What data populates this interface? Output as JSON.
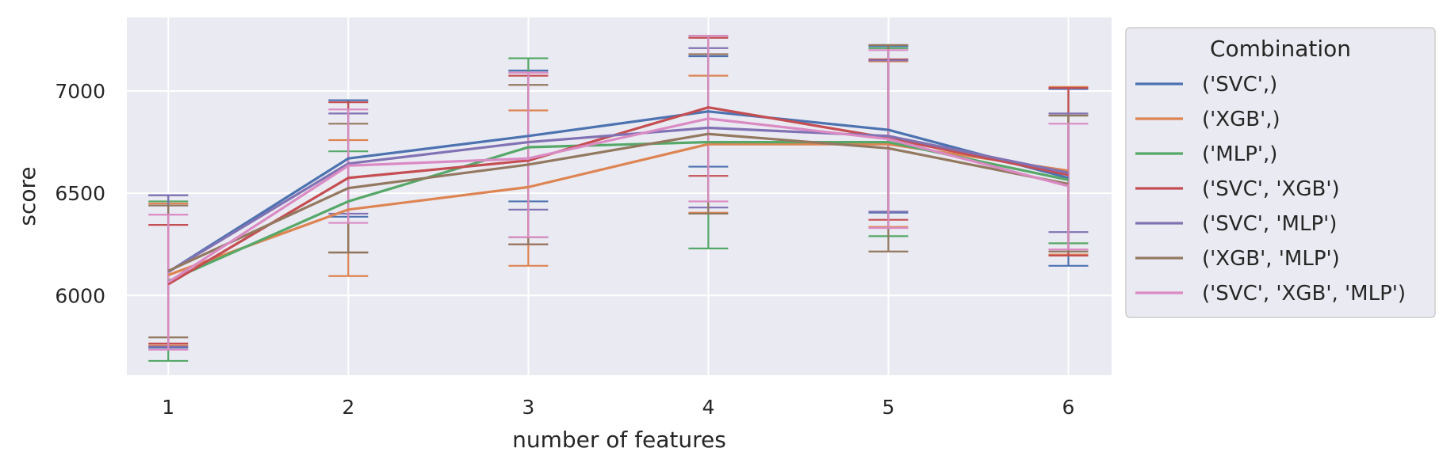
{
  "chart_data": {
    "type": "line",
    "xlabel": "number of features",
    "ylabel": "score",
    "x": [
      1,
      2,
      3,
      4,
      5,
      6
    ],
    "xlim": [
      0.77,
      6.24
    ],
    "ylim": [
      5610,
      7360
    ],
    "yticks": [
      6000,
      6500,
      7000
    ],
    "grid": true,
    "error_bars": true,
    "legend": {
      "title": "Combination",
      "placement": "outside-right"
    },
    "series": [
      {
        "name": "('SVC',)",
        "color": "#4c72b0",
        "values": [
          6115,
          6670,
          6780,
          6900,
          6810,
          6575
        ],
        "lower": [
          5745,
          6385,
          6460,
          6630,
          6405,
          6145
        ],
        "upper": [
          6490,
          6955,
          7100,
          7170,
          7220,
          7010
        ]
      },
      {
        "name": "('XGB',)",
        "color": "#dd8452",
        "values": [
          6100,
          6420,
          6530,
          6740,
          6740,
          6610
        ],
        "lower": [
          5755,
          6095,
          6145,
          6405,
          6335,
          6200
        ],
        "upper": [
          6450,
          6760,
          6905,
          7075,
          7145,
          7020
        ]
      },
      {
        "name": "('MLP',)",
        "color": "#55a868",
        "values": [
          6070,
          6460,
          6725,
          6750,
          6750,
          6565
        ],
        "lower": [
          5680,
          6210,
          6285,
          6230,
          6290,
          6255
        ],
        "upper": [
          6460,
          6705,
          7160,
          7270,
          7210,
          6880
        ]
      },
      {
        "name": "('SVC', 'XGB')",
        "color": "#c44e52",
        "values": [
          6055,
          6575,
          6660,
          6920,
          6770,
          6590
        ],
        "lower": [
          5765,
          6210,
          6250,
          6585,
          6370,
          6195
        ],
        "upper": [
          6345,
          6945,
          7075,
          7260,
          7155,
          7015
        ]
      },
      {
        "name": "('SVC', 'MLP')",
        "color": "#8172b3",
        "values": [
          6115,
          6645,
          6750,
          6820,
          6780,
          6600
        ],
        "lower": [
          5750,
          6400,
          6420,
          6430,
          6410,
          6310
        ],
        "upper": [
          6490,
          6890,
          7090,
          7210,
          7150,
          6890
        ]
      },
      {
        "name": "('XGB', 'MLP')",
        "color": "#937860",
        "values": [
          6120,
          6525,
          6640,
          6790,
          6720,
          6545
        ],
        "lower": [
          5795,
          6210,
          6250,
          6400,
          6215,
          6215
        ],
        "upper": [
          6440,
          6840,
          7030,
          7180,
          7225,
          6880
        ]
      },
      {
        "name": "('SVC', 'XGB', 'MLP')",
        "color": "#da8bc3",
        "values": [
          6065,
          6635,
          6670,
          6865,
          6765,
          6535
        ],
        "lower": [
          5735,
          6355,
          6285,
          6460,
          6330,
          6225
        ],
        "upper": [
          6395,
          6910,
          7090,
          7270,
          7200,
          6840
        ]
      }
    ]
  }
}
